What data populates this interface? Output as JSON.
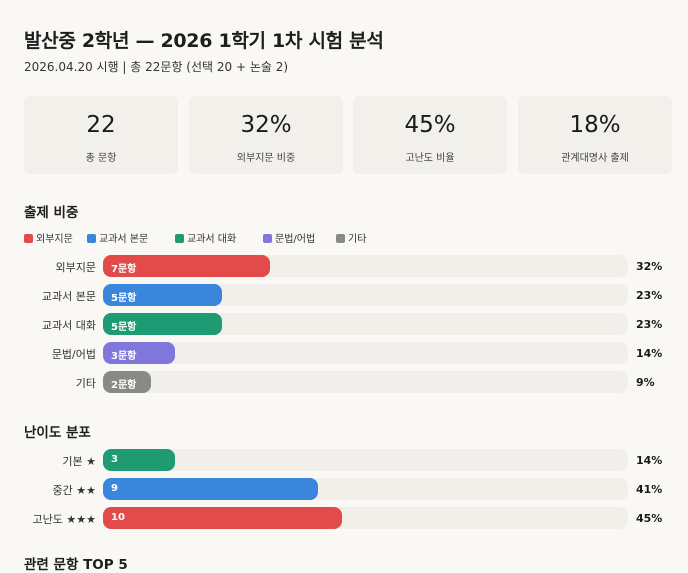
{
  "header": {
    "title": "발산중 2학년 — 2026 1학기 1차 시험 분석",
    "subtitle": "2026.04.20 시행 | 총 22문항 (선택 20 + 논술 2)"
  },
  "stats": [
    {
      "value": "22",
      "label": "총 문항"
    },
    {
      "value": "32%",
      "label": "외부지문 비중"
    },
    {
      "value": "45%",
      "label": "고난도 비율"
    },
    {
      "value": "18%",
      "label": "관계대명사 출제"
    }
  ],
  "next_section_partial": "관련 문항 TOP 5",
  "chart_data": [
    {
      "type": "bar",
      "title": "출제 비중",
      "orientation": "horizontal",
      "legend_position": "top-left",
      "xlim": [
        0,
        22
      ],
      "categories": [
        "외부지문",
        "교과서 본문",
        "교과서 대화",
        "문법/어법",
        "기타"
      ],
      "values": [
        7,
        5,
        5,
        3,
        2
      ],
      "bar_labels": [
        "7문항",
        "5문항",
        "5문항",
        "3문항",
        "2문항"
      ],
      "percents": [
        "32%",
        "23%",
        "23%",
        "14%",
        "9%"
      ],
      "colors": [
        "#e34b4b",
        "#3a86dc",
        "#1f9b73",
        "#8176dc",
        "#8a8a85"
      ],
      "legend": [
        "외부지문",
        "교과서 본문",
        "교과서 대화",
        "문법/어법",
        "기타"
      ]
    },
    {
      "type": "bar",
      "title": "난이도 분포",
      "orientation": "horizontal",
      "xlim": [
        0,
        22
      ],
      "categories": [
        "기본 ★",
        "중간 ★★",
        "고난도 ★★★"
      ],
      "values": [
        3,
        9,
        10
      ],
      "bar_labels": [
        "3",
        "9",
        "10"
      ],
      "percents": [
        "14%",
        "41%",
        "45%"
      ],
      "colors": [
        "#1f9b73",
        "#3a86dc",
        "#e34b4b"
      ]
    }
  ]
}
